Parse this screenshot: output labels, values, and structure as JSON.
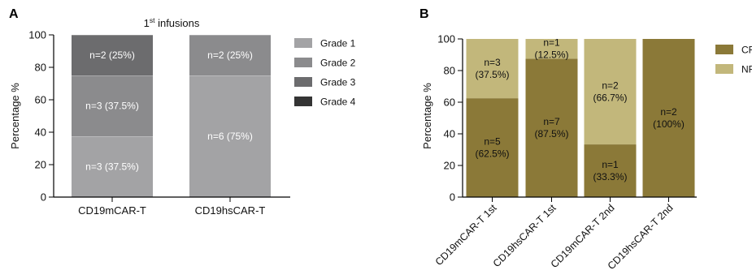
{
  "panel_a_label": "A",
  "panel_b_label": "B",
  "colors": {
    "grade_1": "#a3a3a5",
    "grade_2": "#8b8b8d",
    "grade_3": "#6c6c6e",
    "grade_4": "#343434",
    "cr": "#8b7938",
    "nr": "#c2b77b",
    "axis": "#000000",
    "label_light": "#ffffff",
    "label_dark": "#111111"
  },
  "chart_data": [
    {
      "type": "bar",
      "stacked": true,
      "title": "1st infusions",
      "title_base": "1",
      "title_superscript": "st",
      "title_rest": " infusions",
      "ylabel": "Percentage %",
      "xlabel": "",
      "ylim": [
        0,
        100
      ],
      "yticks": [
        0,
        20,
        40,
        60,
        80,
        100
      ],
      "categories": [
        "CD19mCAR-T",
        "CD19hsCAR-T"
      ],
      "legend_position": "right",
      "series": [
        {
          "name": "Grade 1",
          "values": [
            37.5,
            75
          ],
          "labels": [
            "n=3 (37.5%)",
            "n=6 (75%)"
          ]
        },
        {
          "name": "Grade 2",
          "values": [
            37.5,
            25
          ],
          "labels": [
            "n=3 (37.5%)",
            "n=2 (25%)"
          ]
        },
        {
          "name": "Grade 3",
          "values": [
            25,
            0
          ],
          "labels": [
            "n=2 (25%)",
            ""
          ]
        },
        {
          "name": "Grade 4",
          "values": [
            0,
            0
          ],
          "labels": [
            "",
            ""
          ]
        }
      ]
    },
    {
      "type": "bar",
      "stacked": true,
      "title": "",
      "ylabel": "Percentage %",
      "xlabel": "",
      "ylim": [
        0,
        100
      ],
      "yticks": [
        0,
        20,
        40,
        60,
        80,
        100
      ],
      "categories": [
        "CD19mCAR-T 1st",
        "CD19hsCAR-T 1st",
        "CD19mCAR-T 2nd",
        "CD19hsCAR-T 2nd"
      ],
      "legend_position": "right",
      "series": [
        {
          "name": "CR",
          "values": [
            62.5,
            87.5,
            33.3,
            100
          ],
          "labels": [
            [
              "n=5",
              "(62.5%)"
            ],
            [
              "n=7",
              "(87.5%)"
            ],
            [
              "n=1",
              "(33.3%)"
            ],
            [
              "n=2",
              "(100%)"
            ]
          ]
        },
        {
          "name": "NR",
          "values": [
            37.5,
            12.5,
            66.7,
            0
          ],
          "labels": [
            [
              "n=3",
              "(37.5%)"
            ],
            [
              "n=1",
              "(12.5%)"
            ],
            [
              "n=2",
              "(66.7%)"
            ],
            []
          ]
        }
      ]
    }
  ]
}
